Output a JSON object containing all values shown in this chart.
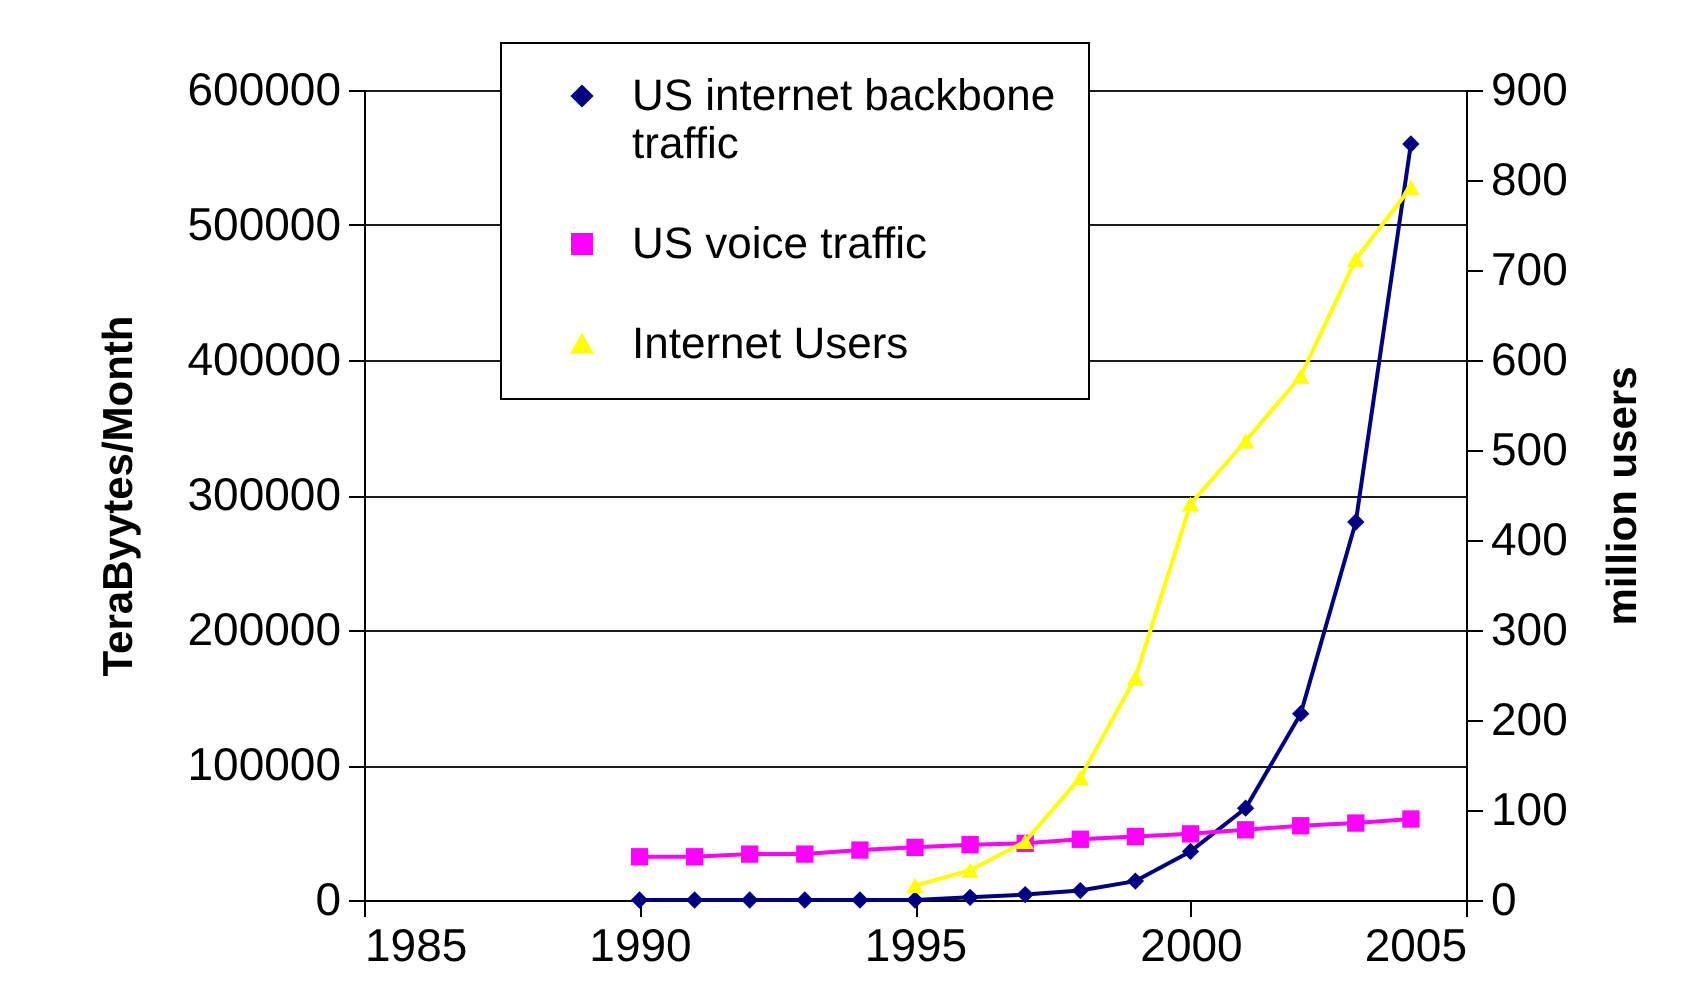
{
  "chart_data": {
    "type": "line",
    "ylabel": "TeraByytes/Month",
    "y2label": "million users",
    "x": [
      1990,
      1991,
      1992,
      1993,
      1994,
      1995,
      1996,
      1997,
      1998,
      1999,
      2000,
      2001,
      2002,
      2003,
      2004
    ],
    "xlim": [
      1985,
      2005
    ],
    "xticks": [
      1985,
      1990,
      1995,
      2000,
      2005
    ],
    "ylim": [
      0,
      600000
    ],
    "yticks": [
      0,
      100000,
      200000,
      300000,
      400000,
      500000,
      600000
    ],
    "y2lim": [
      0,
      900
    ],
    "y2ticks": [
      0,
      100,
      200,
      300,
      400,
      500,
      600,
      700,
      800,
      900
    ],
    "grid": "y",
    "legend": "top left",
    "series": [
      {
        "name": "US internet backbone traffic",
        "color": "#000080",
        "marker": "diamond",
        "values": [
          0,
          0,
          0,
          0,
          0,
          0,
          2000,
          4000,
          7000,
          14000,
          36000,
          68000,
          138000,
          280000,
          560000
        ]
      },
      {
        "name": "US voice traffic",
        "color": "#ff00ff",
        "marker": "square",
        "values": [
          32000,
          32000,
          34000,
          34000,
          37000,
          39000,
          41000,
          42000,
          45000,
          47000,
          49000,
          52000,
          55000,
          57000,
          60000
        ]
      },
      {
        "name": "Internet Users",
        "color": "#ffff00",
        "marker": "triangle",
        "axis": "y2",
        "x": [
          1995,
          1996,
          1997,
          1998,
          1999,
          2000,
          2001,
          2002,
          2003,
          2004
        ],
        "values": [
          16,
          33,
          65,
          136,
          247,
          440,
          510,
          582,
          712,
          792
        ]
      }
    ]
  }
}
